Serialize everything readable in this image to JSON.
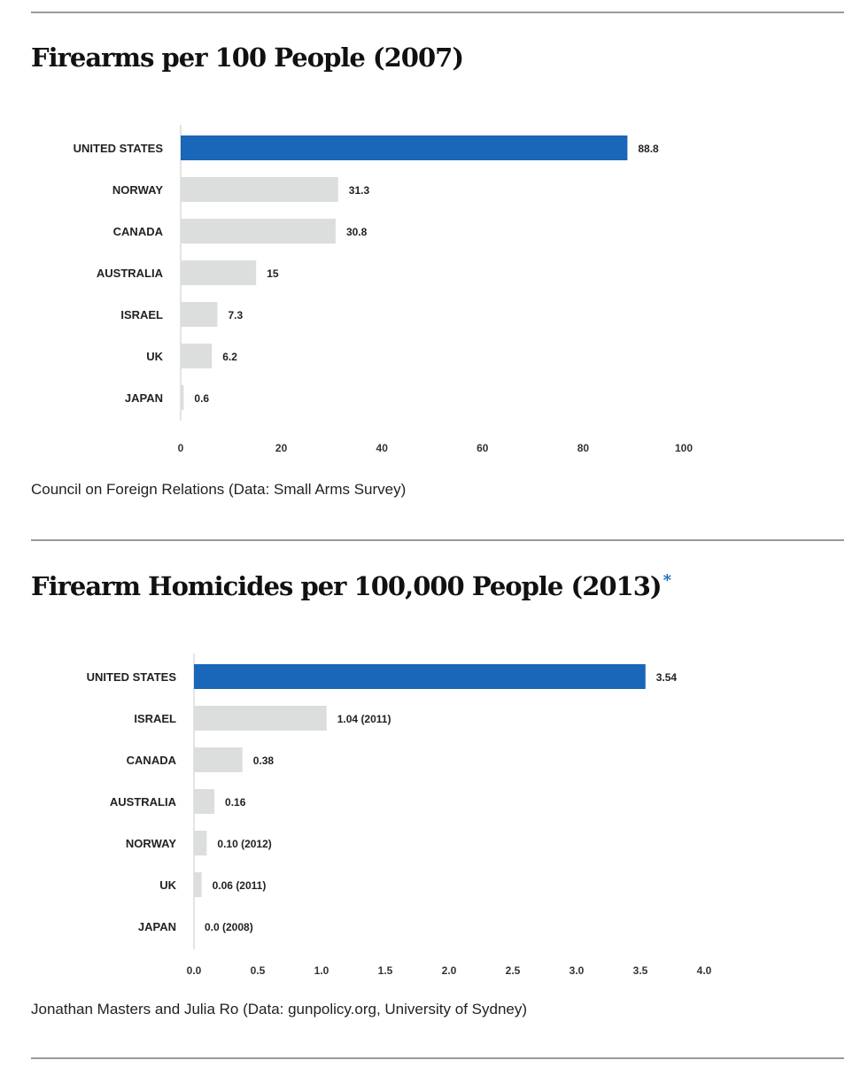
{
  "chart_data": [
    {
      "type": "bar",
      "title": "Firearms per 100 People (2007)",
      "categories": [
        "UNITED STATES",
        "NORWAY",
        "CANADA",
        "AUSTRALIA",
        "ISRAEL",
        "UK",
        "JAPAN"
      ],
      "values": [
        88.8,
        31.3,
        30.8,
        15,
        7.3,
        6.2,
        0.6
      ],
      "value_labels": [
        "88.8",
        "31.3",
        "30.8",
        "15",
        "7.3",
        "6.2",
        "0.6"
      ],
      "highlight_index": 0,
      "xlim": [
        0,
        100
      ],
      "xticks": [
        0,
        20,
        40,
        60,
        80,
        100
      ],
      "xtick_labels": [
        "0",
        "20",
        "40",
        "60",
        "80",
        "100"
      ],
      "orientation": "horizontal",
      "caption": "Council on Foreign Relations (Data: Small Arms Survey)"
    },
    {
      "type": "bar",
      "title": "Firearm Homicides per 100,000 People (2013)",
      "title_marker": "*",
      "categories": [
        "UNITED STATES",
        "ISRAEL",
        "CANADA",
        "AUSTRALIA",
        "NORWAY",
        "UK",
        "JAPAN"
      ],
      "values": [
        3.54,
        1.04,
        0.38,
        0.16,
        0.1,
        0.06,
        0.0
      ],
      "value_labels": [
        "3.54",
        "1.04 (2011)",
        "0.38",
        "0.16",
        "0.10 (2012)",
        "0.06 (2011)",
        "0.0 (2008)"
      ],
      "highlight_index": 0,
      "xlim": [
        0,
        4
      ],
      "xticks": [
        0,
        0.5,
        1,
        1.5,
        2,
        2.5,
        3,
        3.5,
        4
      ],
      "xtick_labels": [
        "0.0",
        "0.5",
        "1.0",
        "1.5",
        "2.0",
        "2.5",
        "3.0",
        "3.5",
        "4.0"
      ],
      "orientation": "horizontal",
      "caption": "Jonathan Masters and Julia Ro (Data: gunpolicy.org, University of Sydney)"
    }
  ],
  "colors": {
    "highlight": "#1a66b8",
    "bar": "#dcdedd",
    "axis": "#c8c8c8",
    "rule": "#9a9a9a"
  }
}
